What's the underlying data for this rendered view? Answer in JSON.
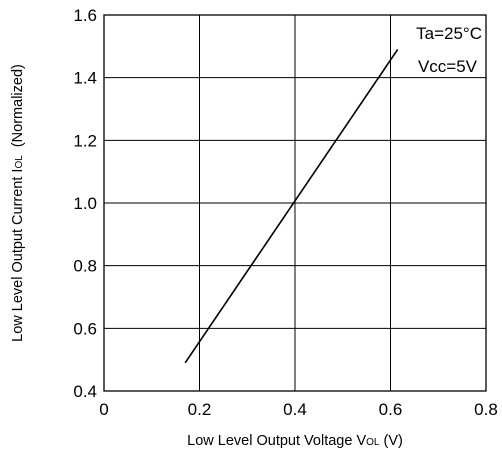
{
  "chart_data": {
    "type": "line",
    "title": "",
    "xlabel": {
      "main": "Low Level Output Voltage V",
      "sub": "OL",
      "suffix": " (V)"
    },
    "ylabel": {
      "main": "Low Level Output Current I",
      "sub": "OL",
      "suffix": "  (Normalized)"
    },
    "xlim": [
      0,
      0.8
    ],
    "ylim": [
      0.4,
      1.6
    ],
    "x_ticks": [
      0,
      0.2,
      0.4,
      0.6,
      0.8
    ],
    "x_tick_labels": [
      "0",
      "0.2",
      "0.4",
      "0.6",
      "0.8"
    ],
    "y_ticks": [
      0.4,
      0.6,
      0.8,
      1.0,
      1.2,
      1.4,
      1.6
    ],
    "y_tick_labels": [
      "0.4",
      "0.6",
      "0.8",
      "1.0",
      "1.2",
      "1.4",
      "1.6"
    ],
    "grid": true,
    "legend": "none",
    "series": [
      {
        "x": [
          0.17,
          0.615
        ],
        "y": [
          0.49,
          1.49
        ],
        "color": "#000000"
      }
    ],
    "annotations": [
      "Ta=25°C",
      "Vcc=5V"
    ]
  }
}
